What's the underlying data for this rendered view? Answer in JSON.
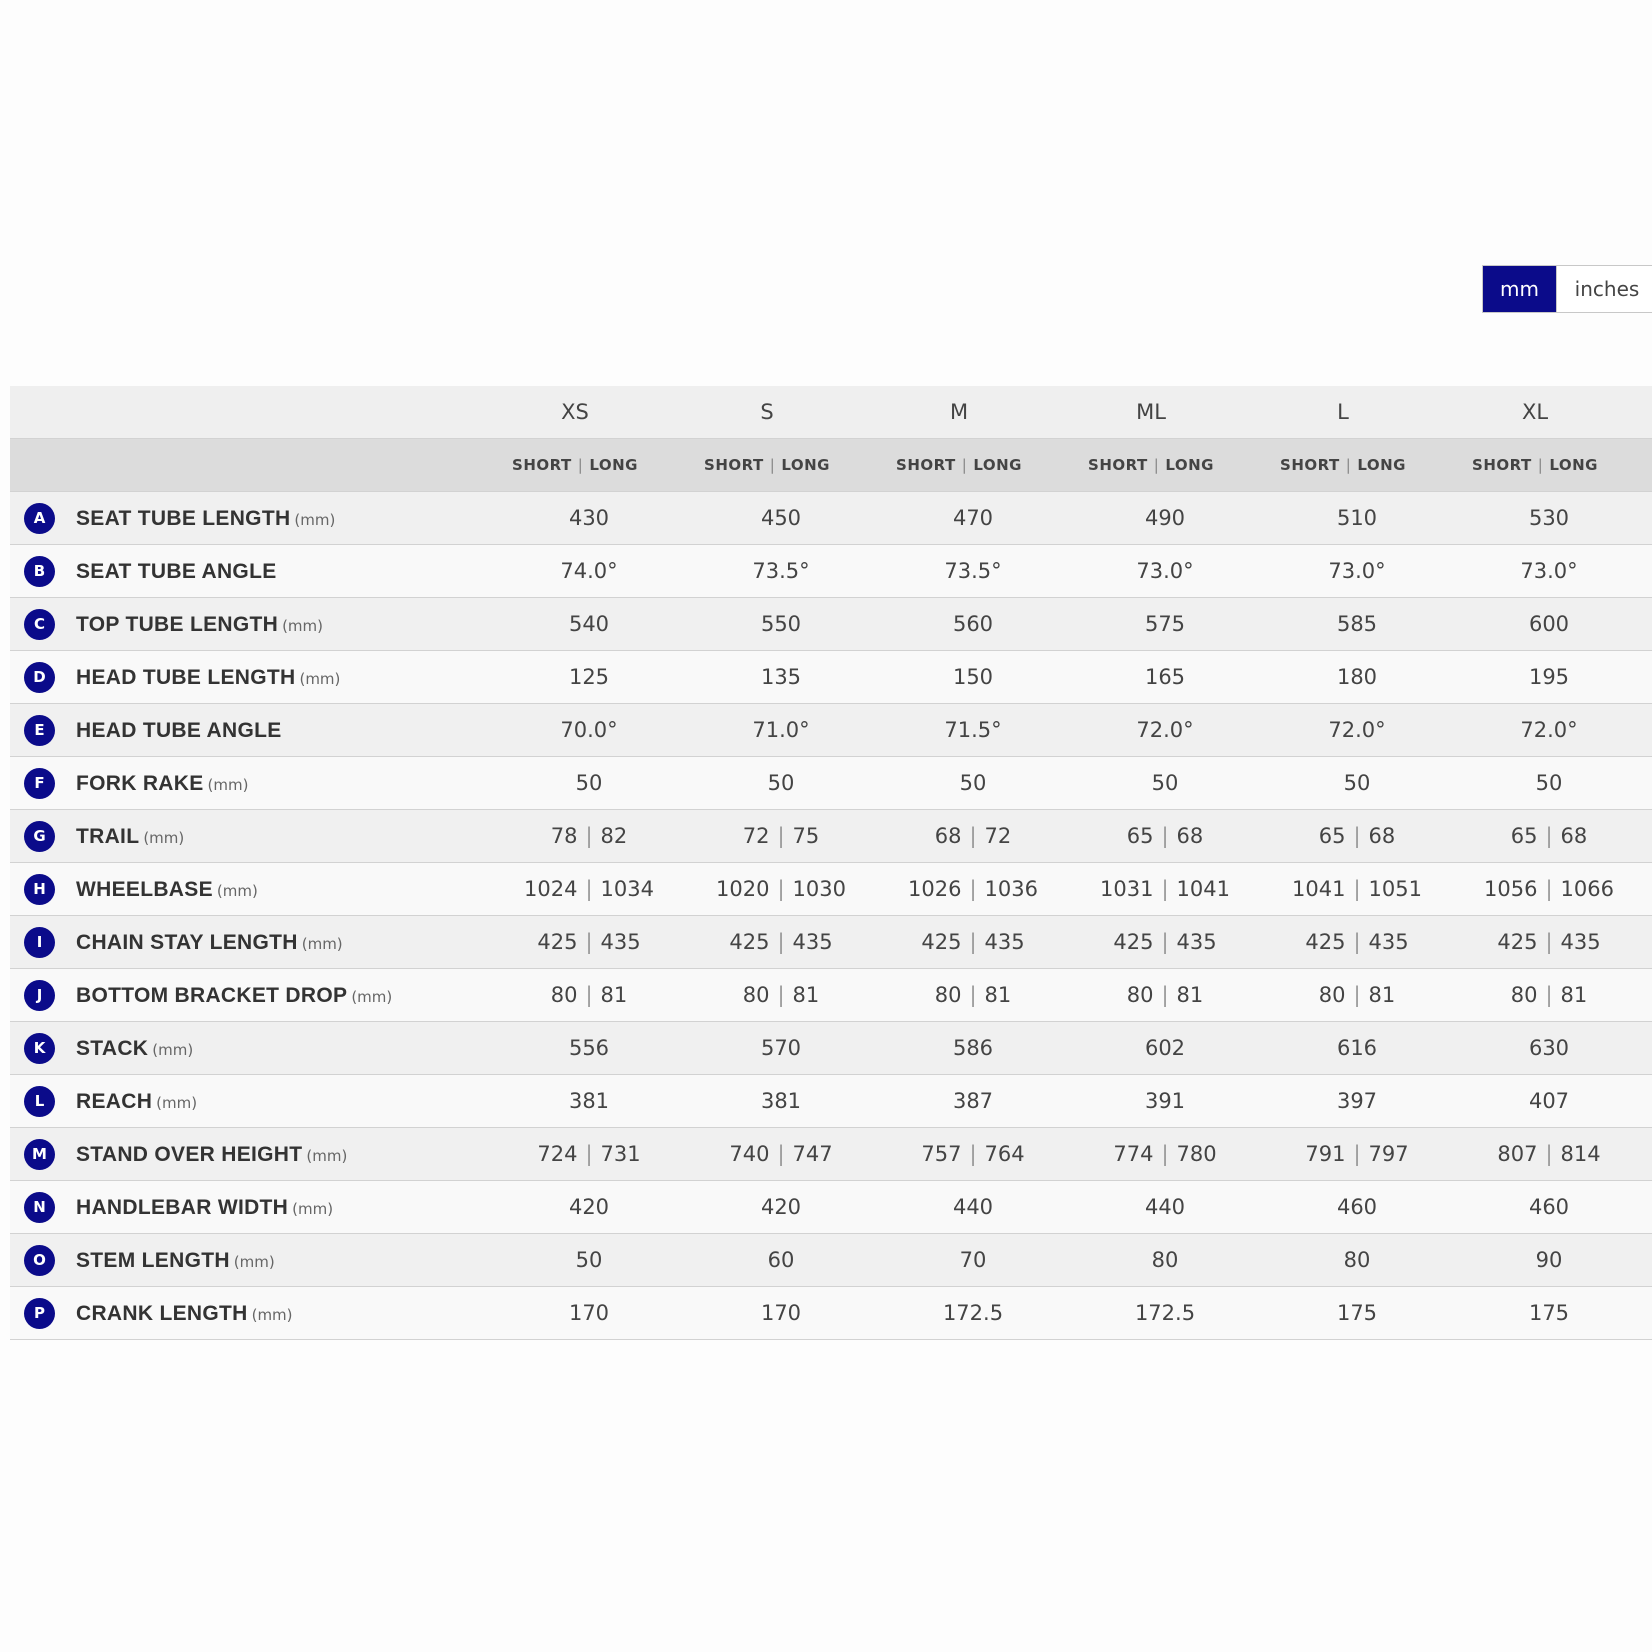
{
  "unit_toggle": {
    "options": [
      "mm",
      "inches"
    ],
    "selected": "mm"
  },
  "colors": {
    "accent": "#0b0b8a",
    "header_bg": "#efefef",
    "subheader_bg": "#dcdcdc"
  },
  "sizes": [
    "XS",
    "S",
    "M",
    "ML",
    "L",
    "XL"
  ],
  "sub_headers": {
    "short": "SHORT",
    "long": "LONG",
    "separator": "|"
  },
  "measurements": [
    {
      "letter": "A",
      "name": "SEAT TUBE LENGTH",
      "unit": "(mm)",
      "values": [
        "430",
        "450",
        "470",
        "490",
        "510",
        "530"
      ]
    },
    {
      "letter": "B",
      "name": "SEAT TUBE ANGLE",
      "unit": "",
      "values": [
        "74.0°",
        "73.5°",
        "73.5°",
        "73.0°",
        "73.0°",
        "73.0°"
      ]
    },
    {
      "letter": "C",
      "name": "TOP TUBE LENGTH",
      "unit": "(mm)",
      "values": [
        "540",
        "550",
        "560",
        "575",
        "585",
        "600"
      ]
    },
    {
      "letter": "D",
      "name": "HEAD TUBE LENGTH",
      "unit": "(mm)",
      "values": [
        "125",
        "135",
        "150",
        "165",
        "180",
        "195"
      ]
    },
    {
      "letter": "E",
      "name": "HEAD TUBE ANGLE",
      "unit": "",
      "values": [
        "70.0°",
        "71.0°",
        "71.5°",
        "72.0°",
        "72.0°",
        "72.0°"
      ]
    },
    {
      "letter": "F",
      "name": "FORK RAKE",
      "unit": "(mm)",
      "values": [
        "50",
        "50",
        "50",
        "50",
        "50",
        "50"
      ]
    },
    {
      "letter": "G",
      "name": "TRAIL",
      "unit": "(mm)",
      "values": [
        [
          "78",
          "82"
        ],
        [
          "72",
          "75"
        ],
        [
          "68",
          "72"
        ],
        [
          "65",
          "68"
        ],
        [
          "65",
          "68"
        ],
        [
          "65",
          "68"
        ]
      ]
    },
    {
      "letter": "H",
      "name": "WHEELBASE",
      "unit": "(mm)",
      "values": [
        [
          "1024",
          "1034"
        ],
        [
          "1020",
          "1030"
        ],
        [
          "1026",
          "1036"
        ],
        [
          "1031",
          "1041"
        ],
        [
          "1041",
          "1051"
        ],
        [
          "1056",
          "1066"
        ]
      ]
    },
    {
      "letter": "I",
      "name": "CHAIN STAY LENGTH",
      "unit": "(mm)",
      "values": [
        [
          "425",
          "435"
        ],
        [
          "425",
          "435"
        ],
        [
          "425",
          "435"
        ],
        [
          "425",
          "435"
        ],
        [
          "425",
          "435"
        ],
        [
          "425",
          "435"
        ]
      ]
    },
    {
      "letter": "J",
      "name": "BOTTOM BRACKET DROP",
      "unit": "(mm)",
      "values": [
        [
          "80",
          "81"
        ],
        [
          "80",
          "81"
        ],
        [
          "80",
          "81"
        ],
        [
          "80",
          "81"
        ],
        [
          "80",
          "81"
        ],
        [
          "80",
          "81"
        ]
      ]
    },
    {
      "letter": "K",
      "name": "STACK",
      "unit": "(mm)",
      "values": [
        "556",
        "570",
        "586",
        "602",
        "616",
        "630"
      ]
    },
    {
      "letter": "L",
      "name": "REACH",
      "unit": "(mm)",
      "values": [
        "381",
        "381",
        "387",
        "391",
        "397",
        "407"
      ]
    },
    {
      "letter": "M",
      "name": "STAND OVER HEIGHT",
      "unit": "(mm)",
      "values": [
        [
          "724",
          "731"
        ],
        [
          "740",
          "747"
        ],
        [
          "757",
          "764"
        ],
        [
          "774",
          "780"
        ],
        [
          "791",
          "797"
        ],
        [
          "807",
          "814"
        ]
      ]
    },
    {
      "letter": "N",
      "name": "HANDLEBAR WIDTH",
      "unit": "(mm)",
      "values": [
        "420",
        "420",
        "440",
        "440",
        "460",
        "460"
      ]
    },
    {
      "letter": "O",
      "name": "STEM LENGTH",
      "unit": "(mm)",
      "values": [
        "50",
        "60",
        "70",
        "80",
        "80",
        "90"
      ]
    },
    {
      "letter": "P",
      "name": "CRANK LENGTH",
      "unit": "(mm)",
      "values": [
        "170",
        "170",
        "172.5",
        "172.5",
        "175",
        "175"
      ]
    }
  ]
}
